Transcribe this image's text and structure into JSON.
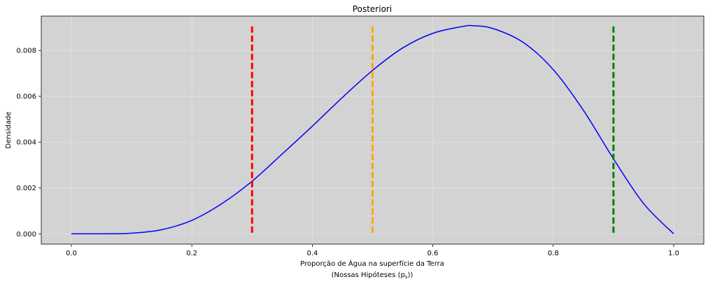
{
  "chart_data": {
    "type": "line",
    "title": "Posteriori",
    "xlabel": "Proporção de Água na superfície da Terra",
    "xlabel_line2": "(Nossas Hipóteses (p",
    "xlabel_line2_sub": "s",
    "xlabel_line2_end": "))",
    "ylabel": "Densidade",
    "xlim": [
      -0.05,
      1.05
    ],
    "ylim": [
      -0.00045,
      0.0095
    ],
    "x_ticks": [
      0.0,
      0.2,
      0.4,
      0.6,
      0.8,
      1.0
    ],
    "x_tick_labels": [
      "0.0",
      "0.2",
      "0.4",
      "0.6",
      "0.8",
      "1.0"
    ],
    "y_ticks": [
      0.0,
      0.002,
      0.004,
      0.006,
      0.008
    ],
    "y_tick_labels": [
      "0.000",
      "0.002",
      "0.004",
      "0.006",
      "0.008"
    ],
    "grid": true,
    "background_color": "#d3d3d3",
    "series": [
      {
        "color": "#0000ff",
        "x": [
          0.0,
          0.05,
          0.1,
          0.15,
          0.2,
          0.25,
          0.3,
          0.35,
          0.4,
          0.45,
          0.5,
          0.55,
          0.6,
          0.65,
          0.667,
          0.7,
          0.75,
          0.8,
          0.85,
          0.9,
          0.95,
          1.0
        ],
        "y": [
          0.0,
          9e-07,
          2.71e-05,
          0.00018,
          0.000587,
          0.00132,
          0.002294,
          0.003484,
          0.004696,
          0.005951,
          0.00713,
          0.008109,
          0.008748,
          0.009048,
          0.00908,
          0.008958,
          0.008354,
          0.007166,
          0.005393,
          0.003273,
          0.001322,
          0.0
        ]
      }
    ],
    "vlines": [
      {
        "x": 0.3,
        "y_top": 0.00905,
        "y_bottom": 0.0,
        "color": "#ff0000",
        "style": "dashed"
      },
      {
        "x": 0.5,
        "y_top": 0.00905,
        "y_bottom": 0.0,
        "color": "#ffa500",
        "style": "dashed"
      },
      {
        "x": 0.9,
        "y_top": 0.00905,
        "y_bottom": 0.0,
        "color": "#008000",
        "style": "dashed"
      }
    ]
  }
}
